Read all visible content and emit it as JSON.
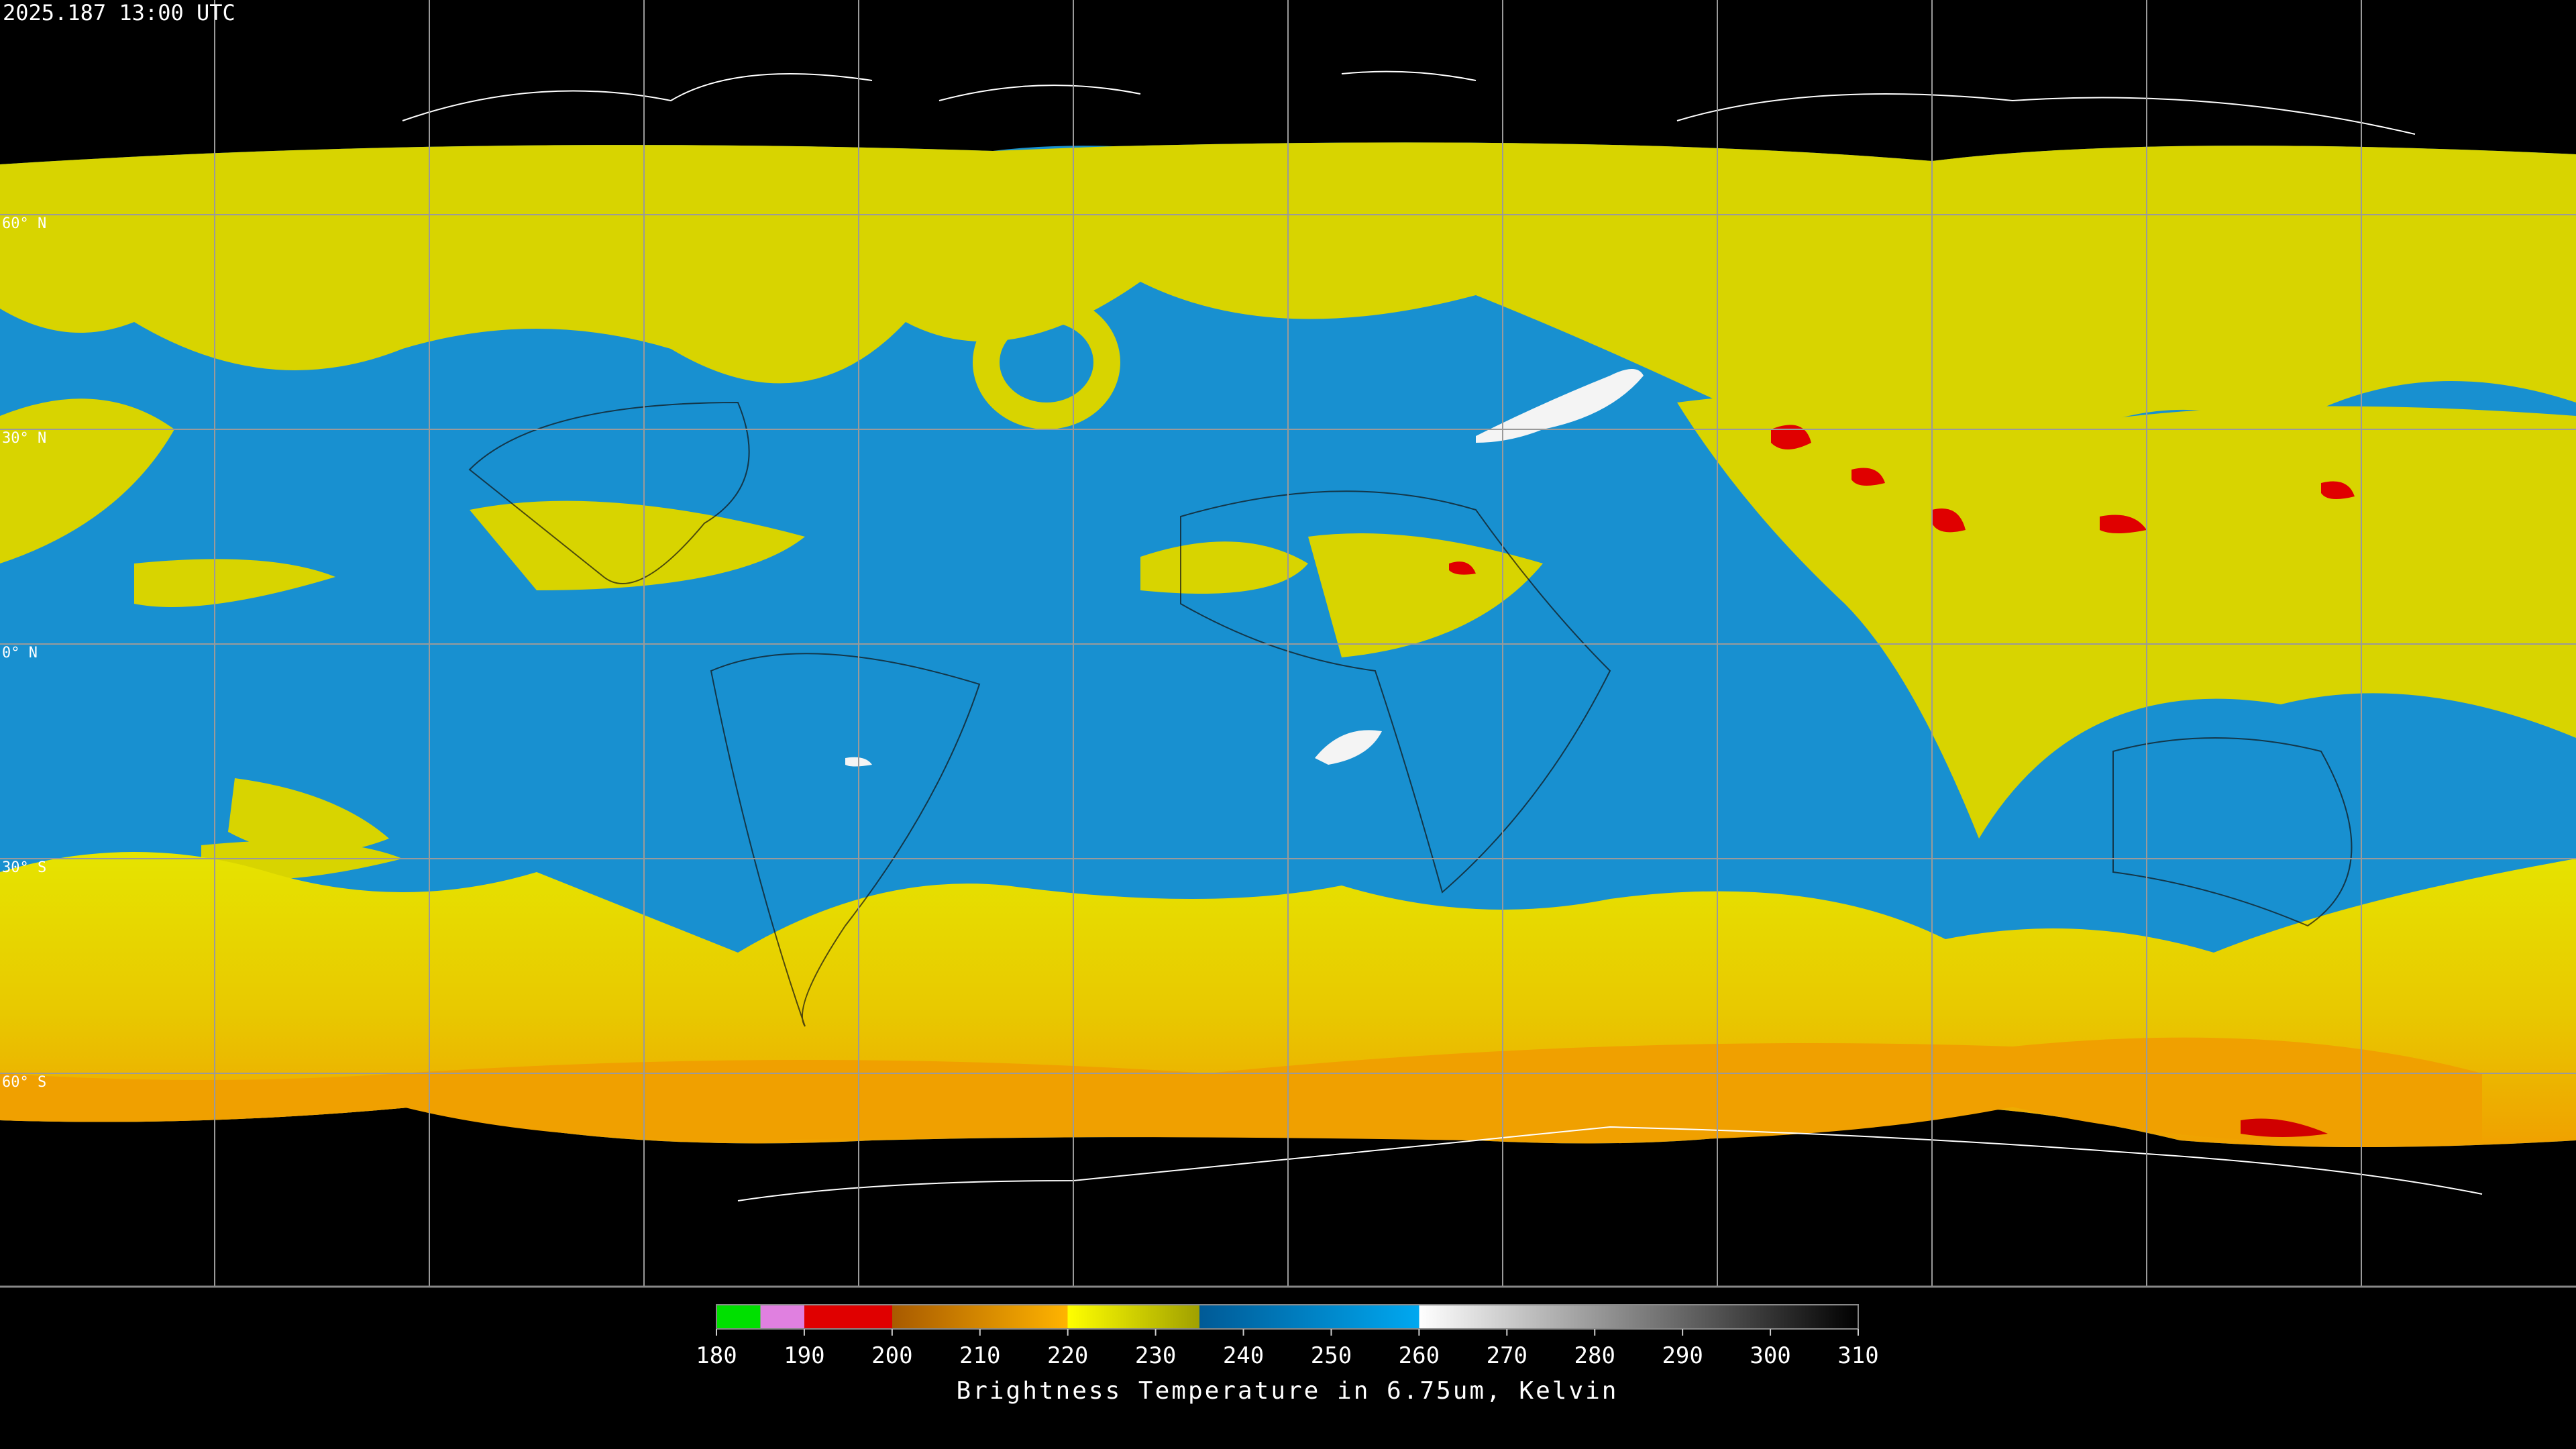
{
  "timestamp": "2025.187 13:00 UTC",
  "latitude_labels": [
    "60° N",
    "30° N",
    "0° N",
    "30° S",
    "60° S"
  ],
  "colorbar": {
    "ticks": [
      180,
      190,
      200,
      210,
      220,
      230,
      240,
      250,
      260,
      270,
      280,
      290,
      300,
      310
    ],
    "title": "Brightness Temperature in 6.75um, Kelvin"
  }
}
